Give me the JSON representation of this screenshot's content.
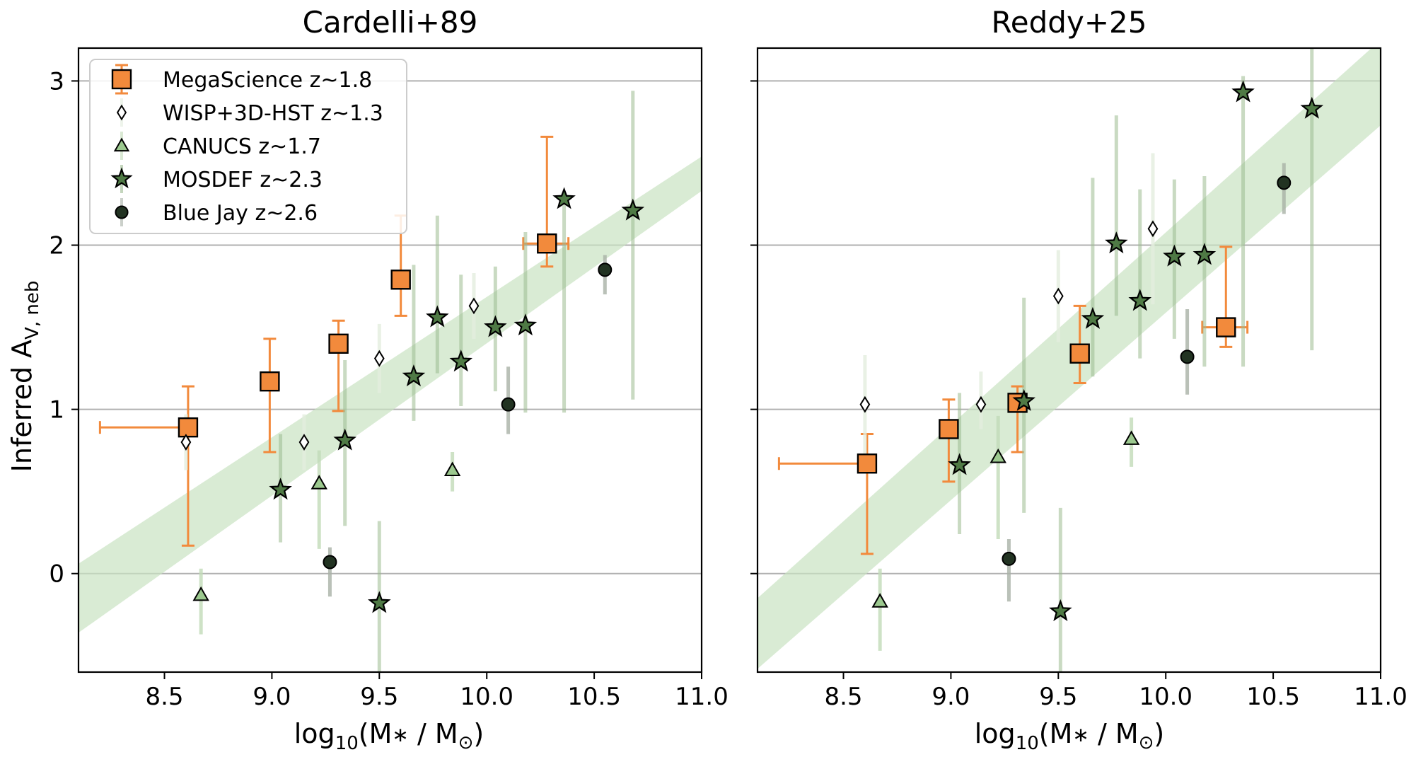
{
  "figure": {
    "ylabel_main": "Inferred A",
    "ylabel_sub": "V, neb",
    "xlabel_main": "log",
    "xlabel_sub": "10",
    "xlabel_rest": "(M",
    "xlabel_star": "∗",
    "xlabel_slash": " / M",
    "xlabel_sun": "⊙",
    "xlabel_close": ")"
  },
  "legend": [
    {
      "label": "MegaScience z~1.8",
      "marker": "square"
    },
    {
      "label": "WISP+3D-HST z~1.3",
      "marker": "thin_diamond"
    },
    {
      "label": "CANUCS z~1.7",
      "marker": "triangle"
    },
    {
      "label": "MOSDEF z~2.3",
      "marker": "star"
    },
    {
      "label": "Blue Jay z~2.6",
      "marker": "circle"
    }
  ],
  "colors": {
    "megascience": "#f28a3c",
    "wisp": "#ffffff",
    "canucs": "#9cc98f",
    "mosdef": "#4f7a45",
    "bluejay": "#223322",
    "band": "#c9e2c2",
    "grid": "#b0b0b0",
    "errbar_green": "#9dbc92"
  },
  "chart_data": [
    {
      "type": "scatter",
      "title": "Cardelli+89",
      "xlim": [
        8.1,
        11.0
      ],
      "ylim": [
        -0.6,
        3.2
      ],
      "xticks": [
        "8.5",
        "9.0",
        "9.5",
        "10.0",
        "10.5",
        "11.0"
      ],
      "xtick_values": [
        8.5,
        9.0,
        9.5,
        10.0,
        10.5,
        11.0
      ],
      "yticks": [
        "0",
        "1",
        "2",
        "3"
      ],
      "ytick_values": [
        0,
        1,
        2,
        3
      ],
      "band": {
        "x": [
          8.1,
          11.0
        ],
        "lower": [
          -0.36,
          2.33
        ],
        "upper": [
          0.06,
          2.54
        ]
      },
      "series": [
        {
          "name": "MegaScience z~1.8",
          "marker": "square",
          "points": [
            {
              "x": 8.61,
              "y": 0.89,
              "yerr_lo": 0.72,
              "yerr_hi": 0.25,
              "xerr_lo": 0.41,
              "xerr_hi": 0.0
            },
            {
              "x": 8.99,
              "y": 1.17,
              "yerr_lo": 0.43,
              "yerr_hi": 0.26,
              "xerr_lo": 0,
              "xerr_hi": 0
            },
            {
              "x": 9.31,
              "y": 1.4,
              "yerr_lo": 0.41,
              "yerr_hi": 0.14,
              "xerr_lo": 0,
              "xerr_hi": 0
            },
            {
              "x": 9.6,
              "y": 1.79,
              "yerr_lo": 0.22,
              "yerr_hi": 0.39,
              "xerr_lo": 0,
              "xerr_hi": 0
            },
            {
              "x": 10.28,
              "y": 2.01,
              "yerr_lo": 0.14,
              "yerr_hi": 0.65,
              "xerr_lo": 0.11,
              "xerr_hi": 0.1
            }
          ]
        },
        {
          "name": "WISP+3D-HST z~1.3",
          "marker": "thin_diamond",
          "points": [
            {
              "x": 8.6,
              "y": 0.8,
              "yerr_lo": 0.17,
              "yerr_hi": 0.17
            },
            {
              "x": 9.15,
              "y": 0.8,
              "yerr_lo": 0.17,
              "yerr_hi": 0.17
            },
            {
              "x": 9.5,
              "y": 1.31,
              "yerr_lo": 0.21,
              "yerr_hi": 0.21
            },
            {
              "x": 9.94,
              "y": 1.63,
              "yerr_lo": 0.2,
              "yerr_hi": 0.2
            }
          ]
        },
        {
          "name": "CANUCS z~1.7",
          "marker": "triangle",
          "points": [
            {
              "x": 8.67,
              "y": -0.13,
              "yerr_lo": 0.24,
              "yerr_hi": 0.16
            },
            {
              "x": 9.22,
              "y": 0.55,
              "yerr_lo": 0.4,
              "yerr_hi": 0.2
            },
            {
              "x": 9.84,
              "y": 0.63,
              "yerr_lo": 0.13,
              "yerr_hi": 0.11
            }
          ]
        },
        {
          "name": "MOSDEF z~2.3",
          "marker": "star",
          "points": [
            {
              "x": 9.04,
              "y": 0.51,
              "yerr_lo": 0.32,
              "yerr_hi": 0.34
            },
            {
              "x": 9.34,
              "y": 0.81,
              "yerr_lo": 0.52,
              "yerr_hi": 0.49
            },
            {
              "x": 9.5,
              "y": -0.18,
              "yerr_lo": 0.42,
              "yerr_hi": 0.5
            },
            {
              "x": 9.66,
              "y": 1.2,
              "yerr_lo": 0.27,
              "yerr_hi": 0.68
            },
            {
              "x": 9.77,
              "y": 1.56,
              "yerr_lo": 0.34,
              "yerr_hi": 0.62
            },
            {
              "x": 9.88,
              "y": 1.29,
              "yerr_lo": 0.27,
              "yerr_hi": 0.53
            },
            {
              "x": 10.04,
              "y": 1.5,
              "yerr_lo": 0.39,
              "yerr_hi": 0.37
            },
            {
              "x": 10.18,
              "y": 1.51,
              "yerr_lo": 0.53,
              "yerr_hi": 0.57
            },
            {
              "x": 10.36,
              "y": 2.28,
              "yerr_lo": 1.3,
              "yerr_hi": 0.0
            },
            {
              "x": 10.68,
              "y": 2.21,
              "yerr_lo": 1.15,
              "yerr_hi": 0.73
            }
          ]
        },
        {
          "name": "Blue Jay z~2.6",
          "marker": "circle",
          "points": [
            {
              "x": 9.27,
              "y": 0.07,
              "yerr_lo": 0.21,
              "yerr_hi": 0.09
            },
            {
              "x": 10.1,
              "y": 1.03,
              "yerr_lo": 0.18,
              "yerr_hi": 0.23
            },
            {
              "x": 10.55,
              "y": 1.85,
              "yerr_lo": 0.15,
              "yerr_hi": 0.09
            }
          ]
        }
      ]
    },
    {
      "type": "scatter",
      "title": "Reddy+25",
      "xlim": [
        8.1,
        11.0
      ],
      "ylim": [
        -0.6,
        3.2
      ],
      "xticks": [
        "8.5",
        "9.0",
        "9.5",
        "10.0",
        "10.5",
        "11.0"
      ],
      "xtick_values": [
        8.5,
        9.0,
        9.5,
        10.0,
        10.5,
        11.0
      ],
      "yticks": [],
      "ytick_values": [
        0,
        1,
        2,
        3
      ],
      "band": {
        "x": [
          8.1,
          11.0
        ],
        "lower": [
          -0.58,
          2.73
        ],
        "upper": [
          -0.15,
          3.25
        ]
      },
      "series": [
        {
          "name": "MegaScience z~1.8",
          "marker": "square",
          "points": [
            {
              "x": 8.61,
              "y": 0.67,
              "yerr_lo": 0.55,
              "yerr_hi": 0.18,
              "xerr_lo": 0.41,
              "xerr_hi": 0.0
            },
            {
              "x": 8.99,
              "y": 0.88,
              "yerr_lo": 0.32,
              "yerr_hi": 0.18,
              "xerr_lo": 0,
              "xerr_hi": 0
            },
            {
              "x": 9.31,
              "y": 1.04,
              "yerr_lo": 0.3,
              "yerr_hi": 0.1,
              "xerr_lo": 0,
              "xerr_hi": 0
            },
            {
              "x": 9.6,
              "y": 1.34,
              "yerr_lo": 0.18,
              "yerr_hi": 0.29,
              "xerr_lo": 0,
              "xerr_hi": 0
            },
            {
              "x": 10.28,
              "y": 1.5,
              "yerr_lo": 0.12,
              "yerr_hi": 0.49,
              "xerr_lo": 0.11,
              "xerr_hi": 0.1
            }
          ]
        },
        {
          "name": "WISP+3D-HST z~1.3",
          "marker": "thin_diamond",
          "points": [
            {
              "x": 8.6,
              "y": 1.03,
              "yerr_lo": 0.3,
              "yerr_hi": 0.3
            },
            {
              "x": 9.14,
              "y": 1.03,
              "yerr_lo": 0.15,
              "yerr_hi": 0.2
            },
            {
              "x": 9.5,
              "y": 1.69,
              "yerr_lo": 0.28,
              "yerr_hi": 0.28
            },
            {
              "x": 9.94,
              "y": 2.1,
              "yerr_lo": 0.46,
              "yerr_hi": 0.46
            }
          ]
        },
        {
          "name": "CANUCS z~1.7",
          "marker": "triangle",
          "points": [
            {
              "x": 8.67,
              "y": -0.17,
              "yerr_lo": 0.3,
              "yerr_hi": 0.2
            },
            {
              "x": 9.22,
              "y": 0.71,
              "yerr_lo": 0.5,
              "yerr_hi": 0.25
            },
            {
              "x": 9.84,
              "y": 0.82,
              "yerr_lo": 0.17,
              "yerr_hi": 0.13
            }
          ]
        },
        {
          "name": "MOSDEF z~2.3",
          "marker": "star",
          "points": [
            {
              "x": 9.04,
              "y": 0.66,
              "yerr_lo": 0.42,
              "yerr_hi": 0.44
            },
            {
              "x": 9.34,
              "y": 1.05,
              "yerr_lo": 0.68,
              "yerr_hi": 0.63
            },
            {
              "x": 9.51,
              "y": -0.23,
              "yerr_lo": 0.55,
              "yerr_hi": 0.63
            },
            {
              "x": 9.66,
              "y": 1.55,
              "yerr_lo": 0.35,
              "yerr_hi": 0.86
            },
            {
              "x": 9.77,
              "y": 2.01,
              "yerr_lo": 0.44,
              "yerr_hi": 0.78
            },
            {
              "x": 9.88,
              "y": 1.66,
              "yerr_lo": 0.35,
              "yerr_hi": 0.68
            },
            {
              "x": 10.04,
              "y": 1.93,
              "yerr_lo": 0.5,
              "yerr_hi": 0.47
            },
            {
              "x": 10.18,
              "y": 1.94,
              "yerr_lo": 0.68,
              "yerr_hi": 0.48
            },
            {
              "x": 10.36,
              "y": 2.93,
              "yerr_lo": 1.67,
              "yerr_hi": 0.1
            },
            {
              "x": 10.68,
              "y": 2.83,
              "yerr_lo": 1.47,
              "yerr_hi": 0.42
            }
          ]
        },
        {
          "name": "Blue Jay z~2.6",
          "marker": "circle",
          "points": [
            {
              "x": 9.27,
              "y": 0.09,
              "yerr_lo": 0.26,
              "yerr_hi": 0.12
            },
            {
              "x": 10.1,
              "y": 1.32,
              "yerr_lo": 0.23,
              "yerr_hi": 0.29
            },
            {
              "x": 10.55,
              "y": 2.38,
              "yerr_lo": 0.19,
              "yerr_hi": 0.12
            }
          ]
        }
      ]
    }
  ]
}
